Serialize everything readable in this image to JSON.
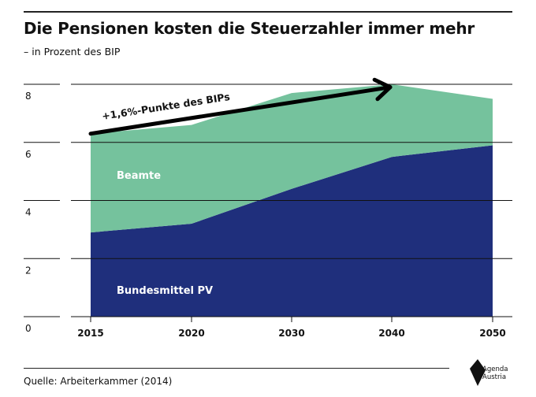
{
  "header": {
    "title": "Die Pensionen kosten die Steuerzahler immer mehr",
    "subtitle": "– in Prozent des BIP"
  },
  "footer": {
    "source": "Quelle: Arbeiterkammer (2014)",
    "logo_line1": "Agenda",
    "logo_line2": "Austria"
  },
  "colors": {
    "bundesmittel": "#1f2f7c",
    "beamte": "#75c29d",
    "grid": "#111111",
    "arrow": "#000000"
  },
  "chart_data": {
    "type": "area",
    "stacked": true,
    "x": [
      2015,
      2020,
      2030,
      2040,
      2050
    ],
    "x_ticks": [
      "2015",
      "2020",
      "2030",
      "2040",
      "2050"
    ],
    "y_ticks": [
      "0",
      "2",
      "4",
      "6",
      "8"
    ],
    "ylim": [
      0,
      8
    ],
    "grid": true,
    "series": [
      {
        "name": "Bundesmittel PV",
        "values": [
          2.9,
          3.2,
          4.4,
          5.5,
          5.9
        ]
      },
      {
        "name": "Beamte",
        "values": [
          3.4,
          3.4,
          3.3,
          2.5,
          1.6
        ]
      }
    ],
    "annotation": {
      "text": "+1,6%-Punkte des BIPs",
      "from": [
        2015,
        6.3
      ],
      "to": [
        2040,
        7.9
      ]
    }
  }
}
